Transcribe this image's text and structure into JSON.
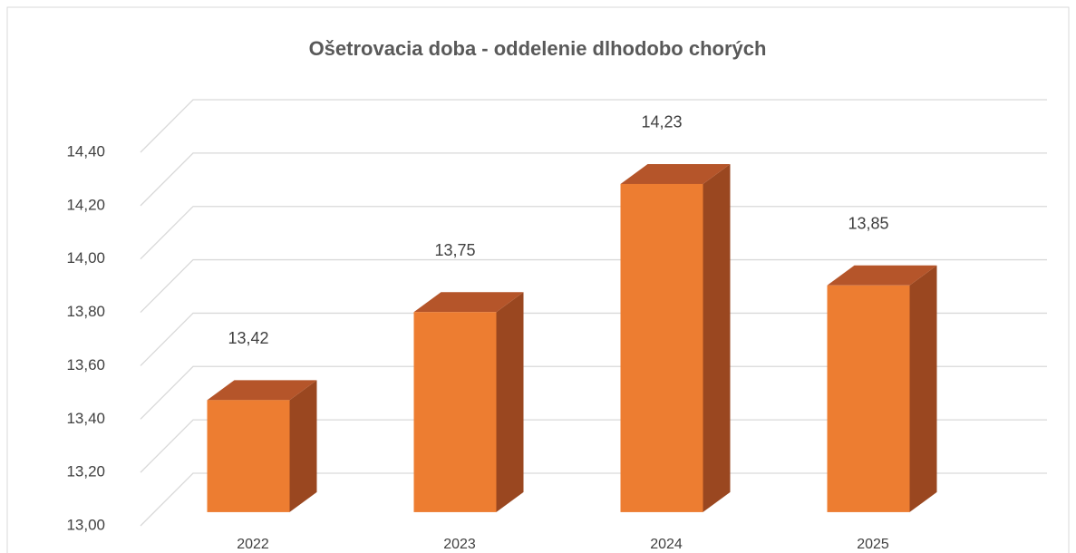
{
  "chart_data": {
    "type": "bar3d",
    "title": "Ošetrovacia doba - oddelenie dlhodobo chorých",
    "categories": [
      "2022",
      "2023",
      "2024",
      "2025"
    ],
    "values": [
      13.42,
      13.75,
      14.23,
      13.85
    ],
    "value_labels": [
      "13,42",
      "13,75",
      "14,23",
      "13,85"
    ],
    "color": "#ED7D31",
    "ylim": [
      13,
      14.4
    ],
    "yticks": [
      {
        "value": 13,
        "label": "13,00"
      },
      {
        "value": 13.2,
        "label": "13,20"
      },
      {
        "value": 13.4,
        "label": "13,40"
      },
      {
        "value": 13.6,
        "label": "13,60"
      },
      {
        "value": 13.8,
        "label": "13,80"
      },
      {
        "value": 14,
        "label": "14,00"
      },
      {
        "value": 14.2,
        "label": "14,20"
      },
      {
        "value": 14.4,
        "label": "14,40"
      }
    ],
    "grid": true
  }
}
